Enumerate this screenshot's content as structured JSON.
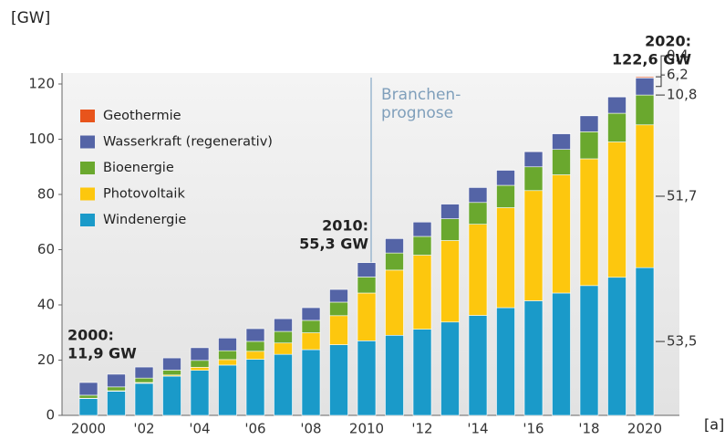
{
  "chart_data": {
    "type": "stacked_bar",
    "unit_label": "[GW]",
    "categories": [
      "2000",
      null,
      "'02",
      null,
      "'04",
      null,
      "'06",
      null,
      "'08",
      null,
      "2010",
      null,
      "'12",
      null,
      "'14",
      null,
      "'16",
      null,
      "'18",
      null,
      "2020"
    ],
    "series": [
      {
        "name": "Windenergie",
        "color": "#1a9ac9",
        "values": [
          6.1,
          8.7,
          11.6,
          14.2,
          16.3,
          18.2,
          20.3,
          22.1,
          23.8,
          25.6,
          27.0,
          29.0,
          31.2,
          33.8,
          36.2,
          39.0,
          41.5,
          44.3,
          47.0,
          50.0,
          53.5
        ],
        "value_labels": [
          null,
          null,
          null,
          null,
          null,
          null,
          null,
          null,
          null,
          null,
          null,
          null,
          null,
          null,
          null,
          null,
          null,
          null,
          null,
          null,
          "53,5"
        ]
      },
      {
        "name": "Photovoltaik",
        "color": "#fdc70e",
        "values": [
          0.1,
          0.2,
          0.3,
          0.4,
          1.1,
          2.0,
          2.9,
          4.1,
          6.1,
          10.5,
          17.3,
          23.6,
          26.8,
          29.5,
          33.0,
          36.2,
          39.9,
          42.8,
          45.9,
          49.0,
          51.7
        ],
        "value_labels": [
          null,
          null,
          null,
          null,
          null,
          null,
          null,
          null,
          null,
          null,
          null,
          null,
          null,
          null,
          null,
          null,
          null,
          null,
          null,
          null,
          "51,7"
        ]
      },
      {
        "name": "Bioenergie",
        "color": "#6aa82e",
        "values": [
          1.1,
          1.4,
          1.6,
          1.8,
          2.5,
          3.2,
          3.6,
          4.2,
          4.5,
          4.9,
          5.8,
          6.2,
          6.8,
          7.9,
          7.9,
          8.1,
          8.6,
          9.2,
          9.8,
          10.4,
          10.8
        ],
        "value_labels": [
          null,
          null,
          null,
          null,
          null,
          null,
          null,
          null,
          null,
          null,
          null,
          null,
          null,
          null,
          null,
          null,
          null,
          null,
          null,
          null,
          "10,8"
        ]
      },
      {
        "name": "Wasserkraft (regenerativ)",
        "color": "#5464a6",
        "values": [
          4.6,
          4.6,
          4.0,
          4.4,
          4.6,
          4.6,
          4.6,
          4.6,
          4.6,
          4.6,
          5.2,
          5.2,
          5.2,
          5.3,
          5.4,
          5.5,
          5.5,
          5.7,
          5.8,
          5.9,
          6.2
        ],
        "value_labels": [
          null,
          null,
          null,
          null,
          null,
          null,
          null,
          null,
          null,
          null,
          null,
          null,
          null,
          null,
          null,
          null,
          null,
          null,
          null,
          null,
          "6,2"
        ]
      },
      {
        "name": "Geothermie",
        "color": "#e8541c",
        "values": [
          0,
          0,
          0,
          0,
          0,
          0,
          0,
          0,
          0,
          0,
          0,
          0,
          0,
          0,
          0,
          0.1,
          0.1,
          0.1,
          0.1,
          0.2,
          0.4
        ],
        "value_labels": [
          null,
          null,
          null,
          null,
          null,
          null,
          null,
          null,
          null,
          null,
          null,
          null,
          null,
          null,
          null,
          null,
          null,
          null,
          null,
          null,
          "0,4"
        ]
      }
    ],
    "ylim": [
      0,
      120
    ],
    "yticks": [
      0,
      20,
      40,
      60,
      80,
      100,
      120
    ],
    "annotations": [
      {
        "lines": [
          "2000:",
          "11,9 GW"
        ]
      },
      {
        "lines": [
          "2010:",
          "55,3 GW"
        ]
      },
      {
        "lines": [
          "2020:",
          "122,6 GW"
        ]
      },
      {
        "lines": [
          "Branchen-",
          "prognose"
        ]
      }
    ],
    "footnote": "[a]"
  }
}
